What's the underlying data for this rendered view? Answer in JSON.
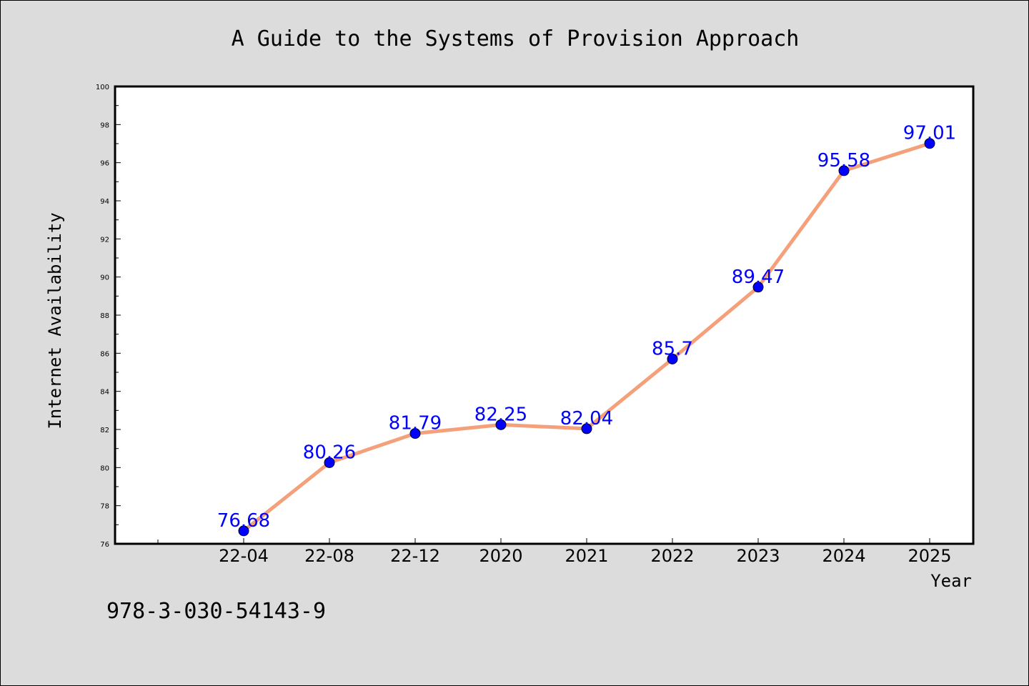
{
  "footer": {
    "isbn": "978-3-030-54143-9"
  },
  "colors": {
    "line": "#f4a07a",
    "marker": "#0000ff",
    "data_label": "#0000ff",
    "background": "#dcdcdc",
    "plot_background": "#ffffff"
  },
  "chart_data": {
    "type": "line",
    "title": "A Guide to the Systems of Provision Approach",
    "xlabel": "Year",
    "ylabel": "Internet Availability",
    "categories": [
      "22-04",
      "22-08",
      "22-12",
      "2020",
      "2021",
      "2022",
      "2023",
      "2024",
      "2025"
    ],
    "series": [
      {
        "values": [
          76.68,
          80.26,
          81.79,
          82.25,
          82.04,
          85.7,
          89.47,
          95.58,
          97.01
        ],
        "labels": [
          "76.68",
          "80.26",
          "81.79",
          "82.25",
          "82.04",
          "85.7",
          "89.47",
          "95.58",
          "97.01"
        ]
      }
    ],
    "ylim": [
      76,
      100
    ],
    "yticks": [
      76,
      78,
      80,
      82,
      84,
      86,
      88,
      90,
      92,
      94,
      96,
      98,
      100
    ],
    "grid": false,
    "legend": "none"
  }
}
